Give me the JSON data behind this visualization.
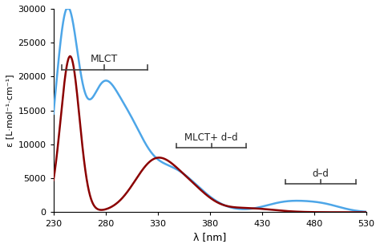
{
  "xlim": [
    230,
    530
  ],
  "ylim": [
    0,
    30000
  ],
  "xlabel": "λ [nm]",
  "ylabel": "ε [L·mol⁻¹·cm⁻¹]",
  "xticks": [
    230,
    280,
    330,
    380,
    430,
    480,
    530
  ],
  "yticks": [
    0,
    5000,
    10000,
    15000,
    20000,
    25000,
    30000
  ],
  "blue_color": "#4da6e8",
  "red_color": "#8b0000",
  "background": "#ffffff",
  "bracket_color": "#444444"
}
